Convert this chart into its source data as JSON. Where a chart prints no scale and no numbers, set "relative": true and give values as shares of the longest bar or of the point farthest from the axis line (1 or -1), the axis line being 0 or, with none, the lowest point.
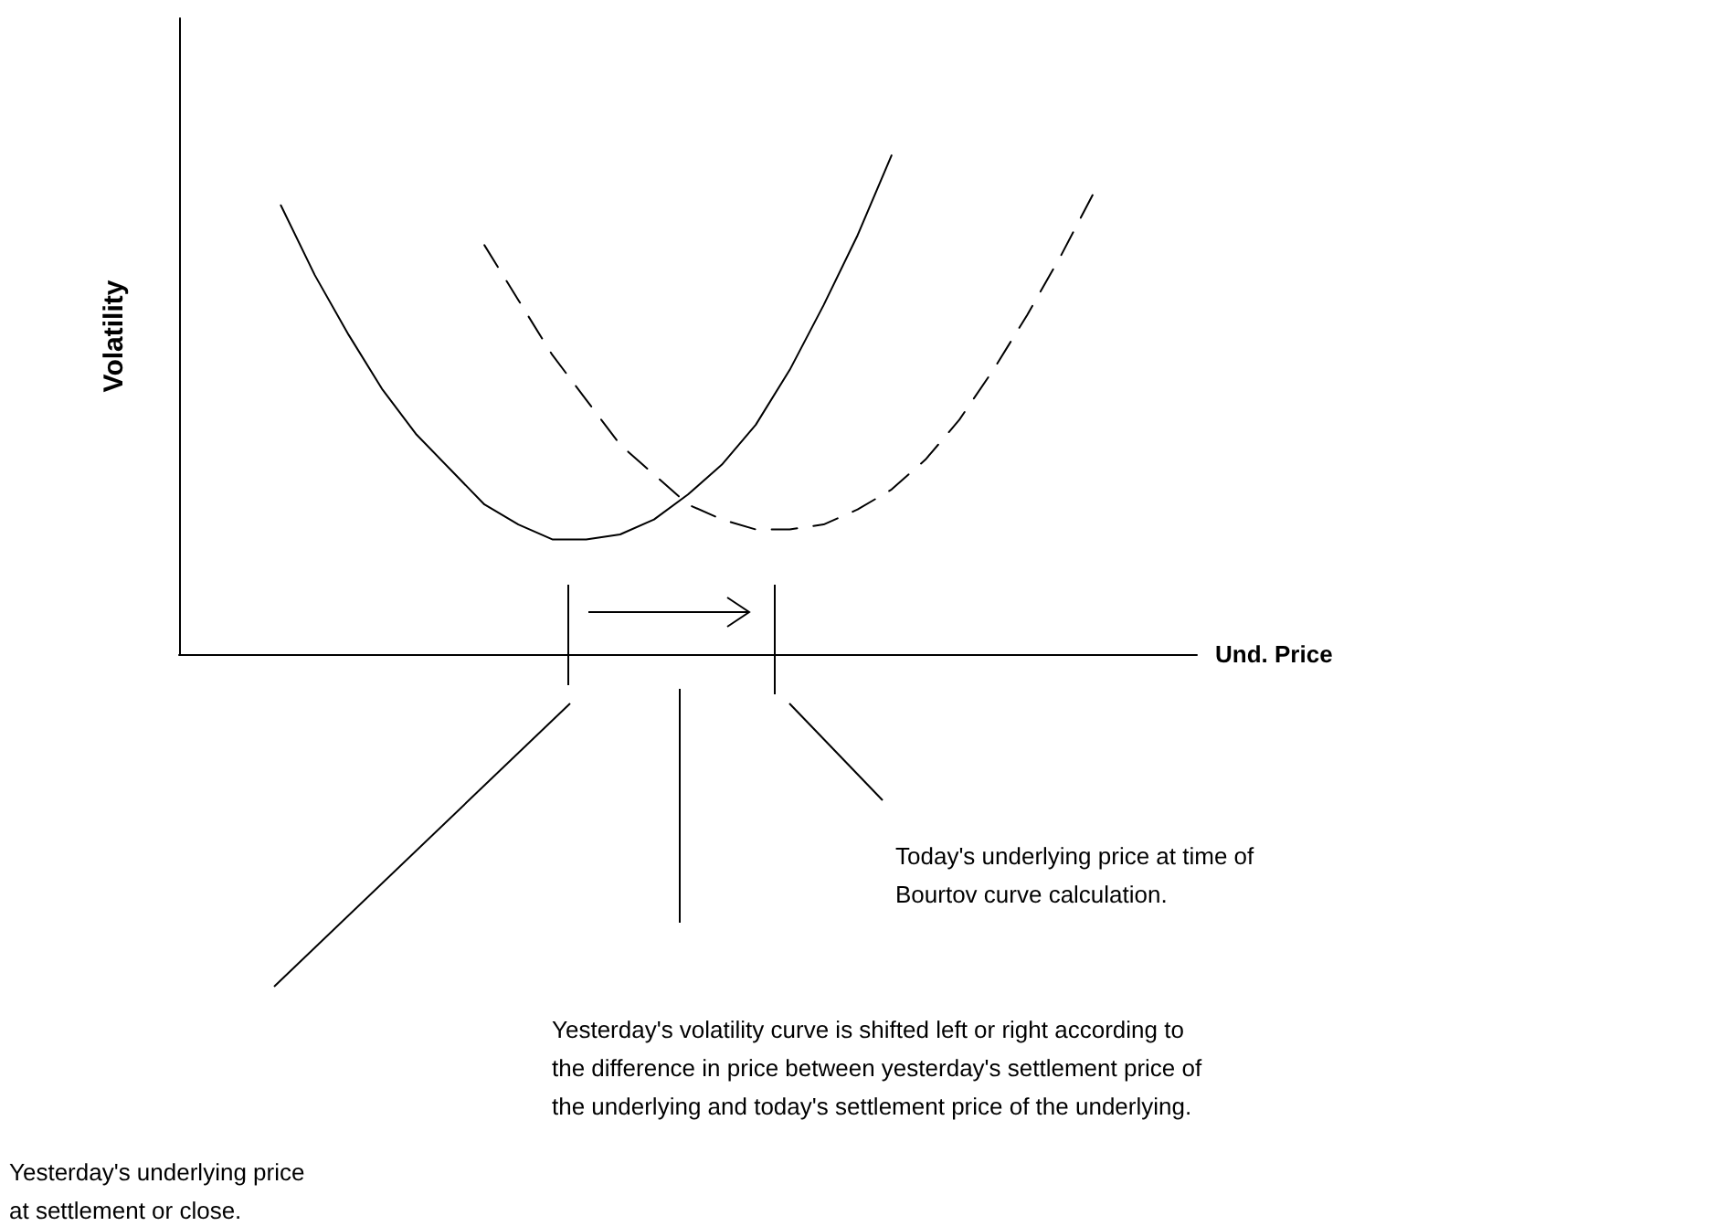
{
  "chart_data": {
    "type": "line",
    "relative": true,
    "xlabel": "Und. Price",
    "ylabel": "Volatility",
    "grid": false,
    "marker": "none",
    "categories": [
      null,
      null,
      null,
      null,
      null,
      null,
      null,
      null,
      null,
      null,
      null,
      null,
      null,
      null,
      null,
      null,
      null,
      null,
      null,
      null,
      null,
      null,
      null,
      null,
      null,
      null,
      null,
      null,
      null,
      null,
      null
    ],
    "series": [
      {
        "color": "#000000",
        "line_style": "solid",
        "values": [
          null,
          null,
          null,
          0.9,
          0.76,
          0.64,
          0.53,
          0.44,
          0.37,
          0.3,
          0.26,
          0.23,
          0.23,
          0.24,
          0.27,
          0.32,
          0.38,
          0.46,
          0.57,
          0.7,
          0.84,
          1,
          null,
          null,
          null,
          null,
          null,
          null,
          null,
          null,
          null
        ]
      },
      {
        "color": "#000000",
        "line_style": "dashed",
        "values": [
          null,
          null,
          null,
          null,
          null,
          null,
          null,
          null,
          null,
          0.82,
          0.71,
          0.6,
          0.51,
          0.42,
          0.36,
          0.3,
          0.27,
          0.25,
          0.25,
          0.26,
          0.29,
          0.33,
          0.39,
          0.47,
          0.57,
          0.68,
          0.8,
          0.93,
          null,
          null,
          null
        ]
      }
    ],
    "annotations": [
      "Today's underlying price at time of\nBourtov curve calculation.",
      "Yesterday's volatility curve is shifted left or right according to\nthe difference in price between yesterday's settlement price of\nthe underlying and today's settlement price of the underlying.",
      "Yesterday's underlying price\nat settlement or close."
    ]
  }
}
